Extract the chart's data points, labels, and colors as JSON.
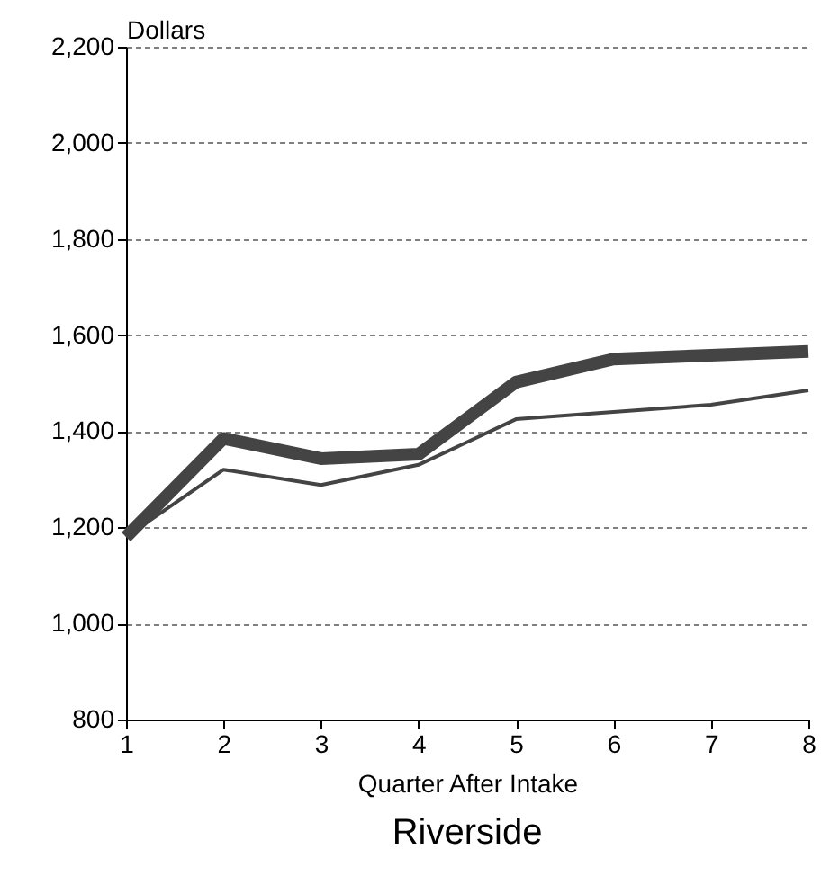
{
  "chart_data": {
    "type": "line",
    "title": "Riverside",
    "xlabel": "Quarter After Intake",
    "ylabel": "Dollars",
    "x": [
      1,
      2,
      3,
      4,
      5,
      6,
      7,
      8
    ],
    "series": [
      {
        "color": "#444444",
        "values": [
          1180,
          1385,
          1343,
          1352,
          1502,
          1550,
          1558,
          1566
        ]
      },
      {
        "color": "#444444",
        "values": [
          1180,
          1320,
          1288,
          1330,
          1425,
          1440,
          1455,
          1485
        ]
      }
    ],
    "xlim": [
      1,
      8
    ],
    "xticks": [
      1,
      2,
      3,
      4,
      5,
      6,
      7,
      8
    ],
    "ylim": [
      800,
      2200
    ],
    "yticks": [
      800,
      {
        "value": 1000,
        "label": "1,000"
      },
      {
        "value": 1200,
        "label": "1,200"
      },
      {
        "value": 1400,
        "label": "1,400"
      },
      {
        "value": 1600,
        "label": "1,600"
      },
      {
        "value": 1800,
        "label": "1,800"
      },
      {
        "value": 2000,
        "label": "2,000"
      },
      {
        "value": 2200,
        "label": "2,200"
      }
    ],
    "grid": "y",
    "marker": "none",
    "line_style": "solid"
  }
}
